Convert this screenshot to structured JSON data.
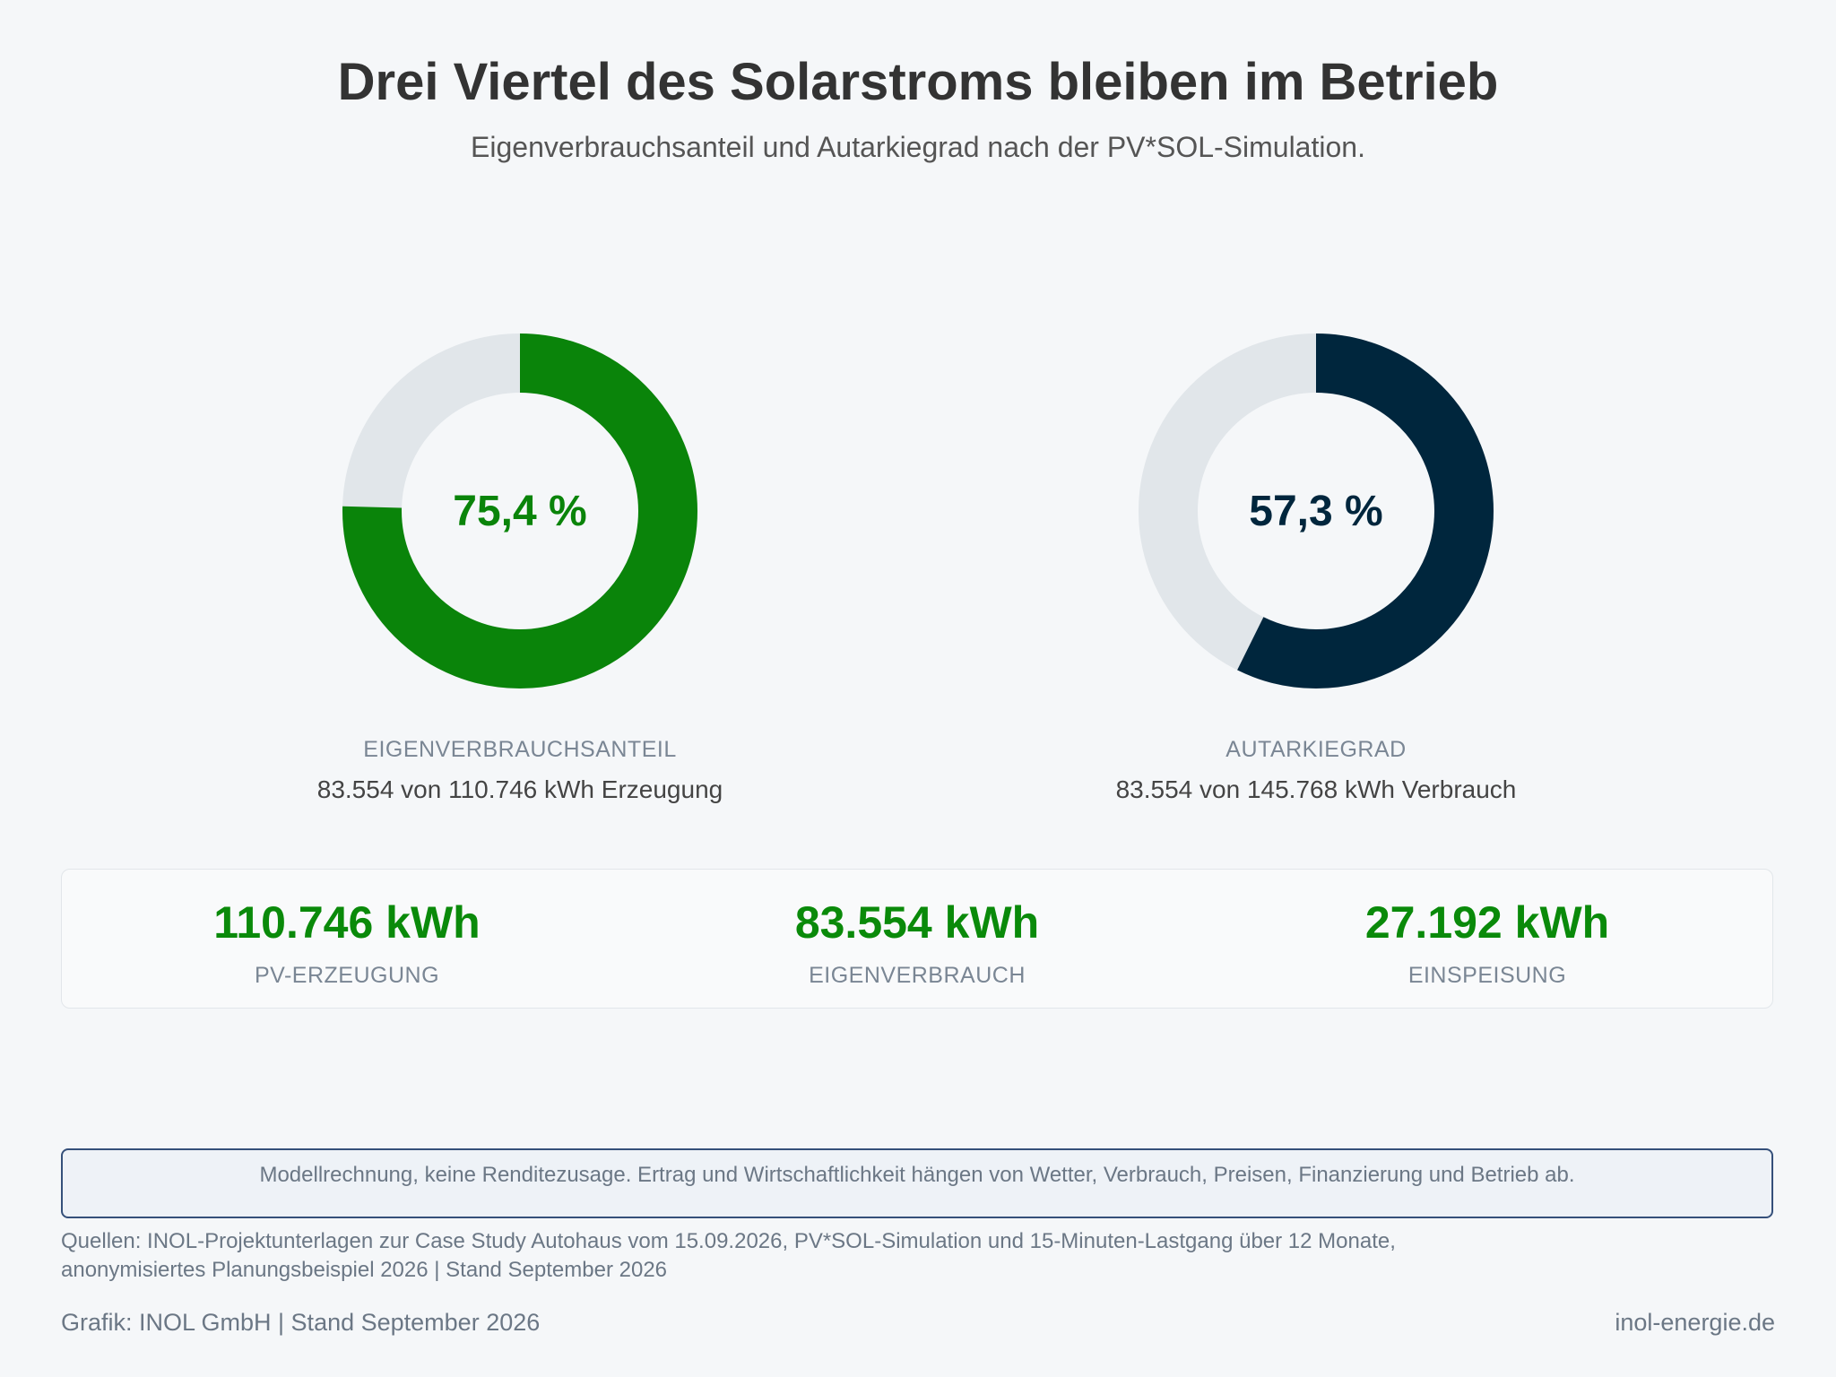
{
  "header": {
    "title": "Drei Viertel des Solarstroms bleiben im Betrieb",
    "subtitle": "Eigenverbrauchsanteil und Autarkiegrad nach der PV*SOL-Simulation."
  },
  "chart_data": [
    {
      "type": "pie",
      "variant": "donut",
      "value_label": "75,4 %",
      "label": "EIGENVERBRAUCHSANTEIL",
      "detail": "83.554 von 110.746 kWh Erzeugung",
      "share_percent": 75.4,
      "color": "#0a840a",
      "track_color": "#e1e6ea"
    },
    {
      "type": "pie",
      "variant": "donut",
      "value_label": "57,3 %",
      "label": "AUTARKIEGRAD",
      "detail": "83.554 von 145.768 kWh Verbrauch",
      "share_percent": 57.3,
      "color": "#00263d",
      "track_color": "#e1e6ea"
    }
  ],
  "kpis": [
    {
      "value": "110.746 kWh",
      "label": "PV-ERZEUGUNG"
    },
    {
      "value": "83.554 kWh",
      "label": "EIGENVERBRAUCH"
    },
    {
      "value": "27.192 kWh",
      "label": "EINSPEISUNG"
    }
  ],
  "disclaimer": "Modellrechnung, keine Renditezusage. Ertrag und Wirtschaftlichkeit hängen von Wetter, Verbrauch, Preisen, Finanzierung und Betrieb ab.",
  "sources": {
    "line1": "Quellen: INOL-Projektunterlagen zur Case Study Autohaus vom 15.09.2026, PV*SOL-Simulation und 15-Minuten-Lastgang über 12 Monate,",
    "line2": "anonymisiertes Planungsbeispiel 2026 | Stand September 2026"
  },
  "footer": {
    "credit": "Grafik: INOL GmbH | Stand September 2026",
    "website": "inol-energie.de"
  },
  "colors": {
    "accent_green": "#0a840a",
    "accent_navy": "#00263d",
    "kpi_green": "#0a8a0a"
  }
}
